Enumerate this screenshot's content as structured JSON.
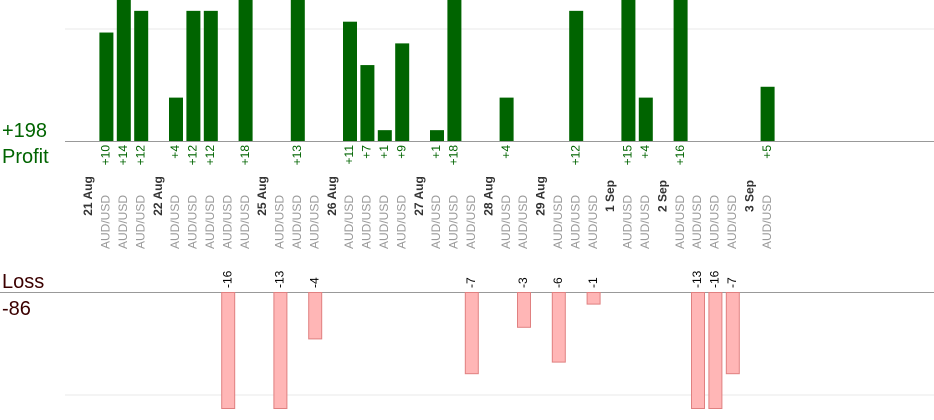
{
  "summary": {
    "profit_value": "+198",
    "profit_label": "Profit",
    "loss_label": "Loss",
    "loss_value": "-86"
  },
  "colors": {
    "profit_bar": "#006400",
    "profit_text": "#006400",
    "loss_bar": "#ffb6b6",
    "loss_bar_stroke": "#e08080",
    "loss_text": "#3b0000",
    "grid": "#e8e8e8",
    "axis": "#999999"
  },
  "chart_data": {
    "type": "bar",
    "title": "",
    "xlabel": "",
    "ylabel": "",
    "profit_ylim": [
      0,
      13
    ],
    "loss_ylim": [
      -10,
      0
    ],
    "grid": true,
    "categories": [
      {
        "date": "21 Aug",
        "trades": [
          10,
          14,
          12
        ]
      },
      {
        "date": "22 Aug",
        "trades": [
          4,
          12,
          12,
          -16,
          18
        ]
      },
      {
        "date": "25 Aug",
        "trades": [
          -13,
          13,
          -4
        ]
      },
      {
        "date": "26 Aug",
        "trades": [
          11,
          7,
          1,
          9
        ]
      },
      {
        "date": "27 Aug",
        "trades": [
          1,
          18,
          -7
        ]
      },
      {
        "date": "28 Aug",
        "trades": [
          4,
          -3
        ]
      },
      {
        "date": "29 Aug",
        "trades": [
          -6,
          12,
          -1
        ]
      },
      {
        "date": "1 Sep",
        "trades": [
          15,
          4
        ]
      },
      {
        "date": "2 Sep",
        "trades": [
          16,
          -13,
          -16,
          -7
        ]
      },
      {
        "date": "3 Sep",
        "trades": [
          5
        ]
      }
    ],
    "instrument_label": "AUD/USD",
    "profit_labels": [
      "+10",
      "+14",
      "+12",
      "+4",
      "+12",
      "+12",
      "+18",
      "+13",
      "+11",
      "+7",
      "+1",
      "+9",
      "+1",
      "+18",
      "+4",
      "+12",
      "+15",
      "+4",
      "+16",
      "+5"
    ],
    "loss_labels": [
      "-16",
      "-13",
      "-4",
      "-7",
      "-3",
      "-6",
      "-1",
      "-13",
      "-16",
      "-7"
    ]
  }
}
